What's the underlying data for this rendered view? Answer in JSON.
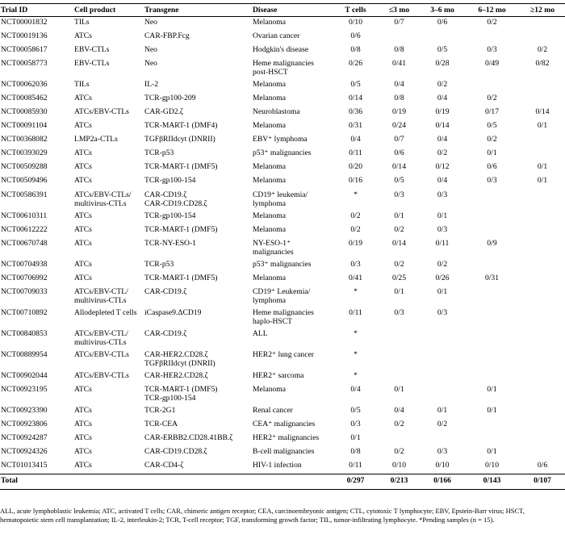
{
  "columns": [
    "Trial ID",
    "Cell product",
    "Transgene",
    "Disease",
    "T cells",
    "≤3 mo",
    "3–6 mo",
    "6–12 mo",
    "≥12 mo"
  ],
  "rows": [
    [
      "NCT00001832",
      "TILs",
      "Neo",
      "Melanoma",
      "0/10",
      "0/7",
      "0/6",
      "0/2",
      ""
    ],
    [
      "NCT00019136",
      "ATCs",
      "CAR-FBP.Fcg",
      "Ovarian cancer",
      "0/6",
      "",
      "",
      "",
      ""
    ],
    [
      "NCT00058617",
      "EBV-CTLs",
      "Neo",
      "Hodgkin's disease",
      "0/8",
      "0/8",
      "0/5",
      "0/3",
      "0/2"
    ],
    [
      "NCT00058773",
      "EBV-CTLs",
      "Neo",
      "Heme malignancies\npost-HSCT",
      "0/26",
      "0/41",
      "0/28",
      "0/49",
      "0/82"
    ],
    [
      "NCT00062036",
      "TILs",
      "IL-2",
      "Melanoma",
      "0/5",
      "0/4",
      "0/2",
      "",
      ""
    ],
    [
      "NCT00085462",
      "ATCs",
      "TCR-gp100-209",
      "Melanoma",
      "0/14",
      "0/8",
      "0/4",
      "0/2",
      ""
    ],
    [
      "NCT00085930",
      "ATCs/EBV-CTLs",
      "CAR-GD2.ζ",
      "Neuroblastoma",
      "0/36",
      "0/19",
      "0/19",
      "0/17",
      "0/14"
    ],
    [
      "NCT00091104",
      "ATCs",
      "TCR-MART-1 (DMF4)",
      "Melanoma",
      "0/31",
      "0/24",
      "0/14",
      "0/5",
      "0/1"
    ],
    [
      "NCT00368082",
      "LMP2a-CTLs",
      "TGFβRIIdcyt (DNRII)",
      "EBV⁺ lymphoma",
      "0/4",
      "0/7",
      "0/4",
      "0/2",
      ""
    ],
    [
      "NCT00393029",
      "ATCs",
      "TCR-p53",
      "p53⁺ malignancies",
      "0/11",
      "0/6",
      "0/2",
      "0/1",
      ""
    ],
    [
      "NCT00509288",
      "ATCs",
      "TCR-MART-1 (DMF5)",
      "Melanoma",
      "0/20",
      "0/14",
      "0/12",
      "0/6",
      "0/1"
    ],
    [
      "NCT00509496",
      "ATCs",
      "TCR-gp100-154",
      "Melanoma",
      "0/16",
      "0/5",
      "0/4",
      "0/3",
      "0/1"
    ],
    [
      "NCT00586391",
      "ATCs/EBV-CTLs/\nmultivirus-CTLs",
      "CAR-CD19.ζ\nCAR-CD19.CD28.ζ",
      "CD19⁺ leukemia/\nlymphoma",
      "*",
      "0/3",
      "0/3",
      "",
      ""
    ],
    [
      "NCT00610311",
      "ATCs",
      "TCR-gp100-154",
      "Melanoma",
      "0/2",
      "0/1",
      "0/1",
      "",
      ""
    ],
    [
      "NCT00612222",
      "ATCs",
      "TCR-MART-1 (DMF5)",
      "Melanoma",
      "0/2",
      "0/2",
      "0/3",
      "",
      ""
    ],
    [
      "NCT00670748",
      "ATCs",
      "TCR-NY-ESO-1",
      "NY-ESO-1⁺\nmalignancies",
      "0/19",
      "0/14",
      "0/11",
      "0/9",
      ""
    ],
    [
      "NCT00704938",
      "ATCs",
      "TCR-p53",
      "p53⁺ malignancies",
      "0/3",
      "0/2",
      "0/2",
      "",
      ""
    ],
    [
      "NCT00706992",
      "ATCs",
      "TCR-MART-1 (DMF5)",
      "Melanoma",
      "0/41",
      "0/25",
      "0/26",
      "0/31",
      ""
    ],
    [
      "NCT00709033",
      "ATCs/EBV-CTL/\nmultivirus-CTLs",
      "CAR-CD19.ζ",
      "CD19⁺ Leukemia/\nlymphoma",
      "*",
      "0/1",
      "0/1",
      "",
      ""
    ],
    [
      "NCT00710892",
      "Allodepleted T cells",
      "iCaspase9.ΔCD19",
      "Heme malignancies\nhaplo-HSCT",
      "0/11",
      "0/3",
      "0/3",
      "",
      ""
    ],
    [
      "NCT00840853",
      "ATCs/EBV-CTL/\nmultivirus-CTLs",
      "CAR-CD19.ζ",
      "ALL",
      "*",
      "",
      "",
      "",
      ""
    ],
    [
      "NCT00889954",
      "ATCs/EBV-CTLs",
      "CAR-HER2.CD28.ζ\nTGFβRIIdcyt (DNRII)",
      "HER2⁺ lung cancer",
      "*",
      "",
      "",
      "",
      ""
    ],
    [
      "NCT00902044",
      "ATCs/EBV-CTLs",
      "CAR-HER2.CD28.ζ",
      "HER2⁺ sarcoma",
      "*",
      "",
      "",
      "",
      ""
    ],
    [
      "NCT00923195",
      "ATCs",
      "TCR-MART-1 (DMF5)\nTCR-gp100-154",
      "Melanoma",
      "0/4",
      "0/1",
      "",
      "0/1",
      ""
    ],
    [
      "NCT00923390",
      "ATCs",
      "TCR-2G1",
      "Renal cancer",
      "0/5",
      "0/4",
      "0/1",
      "0/1",
      ""
    ],
    [
      "NCT00923806",
      "ATCs",
      "TCR-CEA",
      "CEA⁺ malignancies",
      "0/3",
      "0/2",
      "0/2",
      "",
      ""
    ],
    [
      "NCT00924287",
      "ATCs",
      "CAR-ERBB2.CD28.41BB.ζ",
      "HER2⁺ malignancies",
      "0/1",
      "",
      "",
      "",
      ""
    ],
    [
      "NCT00924326",
      "ATCs",
      "CAR-CD19.CD28.ζ",
      "B-cell malignancies",
      "0/8",
      "0/2",
      "0/3",
      "0/1",
      ""
    ],
    [
      "NCT01013415",
      "ATCs",
      "CAR-CD4-ζ",
      "HIV-1 infection",
      "0/11",
      "0/10",
      "0/10",
      "0/10",
      "0/6"
    ]
  ],
  "total": [
    "Total",
    "",
    "",
    "",
    "0/297",
    "0/213",
    "0/166",
    "0/143",
    "0/107"
  ],
  "footnote": "ALL, acute lymphoblastic leukemia; ATC, activated T cells; CAR, chimeric antigen receptor; CEA, carcinoembryonic antigen; CTL, cytotoxic T lymphocyte; EBV, Epstein-Barr virus; HSCT, hematopoietic stem cell transplantation; IL-2, interleukin-2; TCR, T-cell receptor; TGF, transforming growth factor; TIL, tumor-infiltrating lymphocyte. *Pending samples (n = 15)."
}
